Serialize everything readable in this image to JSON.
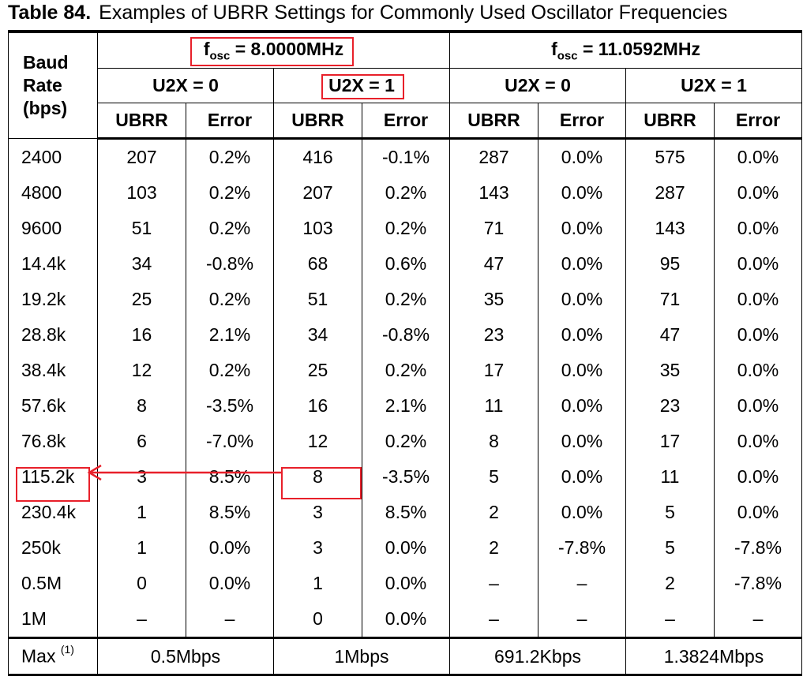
{
  "title": {
    "label": "Table 84.",
    "text": "Examples of UBRR Settings for Commonly Used Oscillator Frequencies"
  },
  "header": {
    "baud_rate": [
      "Baud",
      "Rate",
      "(bps)"
    ],
    "osc_groups": [
      {
        "prefix": "f",
        "sub": "osc",
        "value": " = 8.0000MHz"
      },
      {
        "prefix": "f",
        "sub": "osc",
        "value": " = 11.0592MHz"
      }
    ],
    "u2x": [
      "U2X = 0",
      "U2X = 1",
      "U2X = 0",
      "U2X = 1"
    ],
    "cols": [
      "UBRR",
      "Error",
      "UBRR",
      "Error",
      "UBRR",
      "Error",
      "UBRR",
      "Error"
    ]
  },
  "rows": [
    {
      "baud": "2400",
      "cells": [
        "207",
        "0.2%",
        "416",
        "-0.1%",
        "287",
        "0.0%",
        "575",
        "0.0%"
      ]
    },
    {
      "baud": "4800",
      "cells": [
        "103",
        "0.2%",
        "207",
        "0.2%",
        "143",
        "0.0%",
        "287",
        "0.0%"
      ]
    },
    {
      "baud": "9600",
      "cells": [
        "51",
        "0.2%",
        "103",
        "0.2%",
        "71",
        "0.0%",
        "143",
        "0.0%"
      ]
    },
    {
      "baud": "14.4k",
      "cells": [
        "34",
        "-0.8%",
        "68",
        "0.6%",
        "47",
        "0.0%",
        "95",
        "0.0%"
      ]
    },
    {
      "baud": "19.2k",
      "cells": [
        "25",
        "0.2%",
        "51",
        "0.2%",
        "35",
        "0.0%",
        "71",
        "0.0%"
      ]
    },
    {
      "baud": "28.8k",
      "cells": [
        "16",
        "2.1%",
        "34",
        "-0.8%",
        "23",
        "0.0%",
        "47",
        "0.0%"
      ]
    },
    {
      "baud": "38.4k",
      "cells": [
        "12",
        "0.2%",
        "25",
        "0.2%",
        "17",
        "0.0%",
        "35",
        "0.0%"
      ]
    },
    {
      "baud": "57.6k",
      "cells": [
        "8",
        "-3.5%",
        "16",
        "2.1%",
        "11",
        "0.0%",
        "23",
        "0.0%"
      ]
    },
    {
      "baud": "76.8k",
      "cells": [
        "6",
        "-7.0%",
        "12",
        "0.2%",
        "8",
        "0.0%",
        "17",
        "0.0%"
      ]
    },
    {
      "baud": "115.2k",
      "cells": [
        "3",
        "8.5%",
        "8",
        "-3.5%",
        "5",
        "0.0%",
        "11",
        "0.0%"
      ]
    },
    {
      "baud": "230.4k",
      "cells": [
        "1",
        "8.5%",
        "3",
        "8.5%",
        "2",
        "0.0%",
        "5",
        "0.0%"
      ]
    },
    {
      "baud": "250k",
      "cells": [
        "1",
        "0.0%",
        "3",
        "0.0%",
        "2",
        "-7.8%",
        "5",
        "-7.8%"
      ]
    },
    {
      "baud": "0.5M",
      "cells": [
        "0",
        "0.0%",
        "1",
        "0.0%",
        "–",
        "–",
        "2",
        "-7.8%"
      ]
    },
    {
      "baud": "1M",
      "cells": [
        "–",
        "–",
        "0",
        "0.0%",
        "–",
        "–",
        "–",
        "–"
      ]
    }
  ],
  "max_row": {
    "label": "Max",
    "footnote": "(1)",
    "values": [
      "0.5Mbps",
      "1Mbps",
      "691.2Kbps",
      "1.3824Mbps"
    ]
  },
  "annotation_color": "#e8202a"
}
